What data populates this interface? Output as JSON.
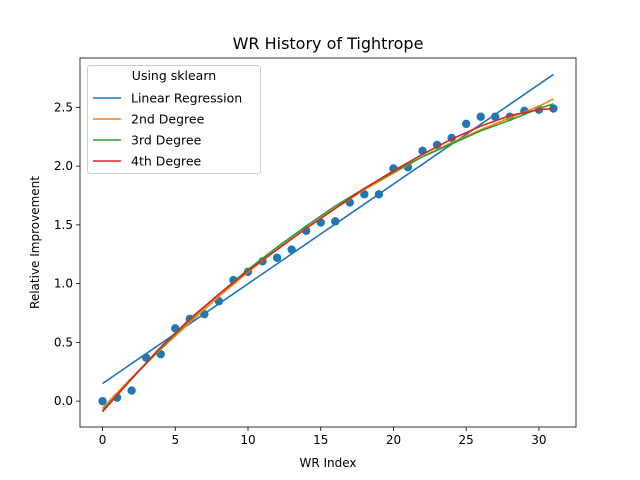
{
  "chart_data": {
    "type": "scatter",
    "title": "WR History of Tightrope",
    "xlabel": "WR Index",
    "ylabel": "Relative Improvement",
    "xlim": [
      -1.55,
      32.55
    ],
    "ylim": [
      -0.22,
      2.92
    ],
    "xticks": [
      0,
      5,
      10,
      15,
      20,
      25,
      30
    ],
    "yticks": [
      0.0,
      0.5,
      1.0,
      1.5,
      2.0,
      2.5
    ],
    "xtick_labels": [
      "0",
      "5",
      "10",
      "15",
      "20",
      "25",
      "30"
    ],
    "ytick_labels": [
      "0.0",
      "0.5",
      "1.0",
      "1.5",
      "2.0",
      "2.5"
    ],
    "grid": false,
    "legend": {
      "title": "Using sklearn",
      "position": "top-left"
    },
    "scatter": {
      "color": "#1f77b4",
      "x": [
        0,
        1,
        2,
        3,
        4,
        5,
        6,
        7,
        8,
        9,
        10,
        11,
        12,
        13,
        14,
        15,
        16,
        17,
        18,
        19,
        20,
        21,
        22,
        23,
        24,
        25,
        26,
        27,
        28,
        29,
        30,
        31
      ],
      "y": [
        0.0,
        0.03,
        0.09,
        0.37,
        0.4,
        0.62,
        0.7,
        0.74,
        0.85,
        1.03,
        1.1,
        1.19,
        1.22,
        1.29,
        1.45,
        1.52,
        1.53,
        1.69,
        1.76,
        1.76,
        1.98,
        1.99,
        2.13,
        2.18,
        2.24,
        2.36,
        2.42,
        2.42,
        2.42,
        2.47,
        2.48,
        2.49
      ]
    },
    "series": [
      {
        "name": "Linear Regression",
        "color": "#1f77b4",
        "x": [
          0,
          31
        ],
        "y": [
          0.15,
          2.78
        ]
      },
      {
        "name": "2nd Degree",
        "color": "#ff7f0e",
        "x": [
          0,
          2,
          4,
          6,
          8,
          10,
          12,
          14,
          16,
          18,
          20,
          22,
          24,
          26,
          28,
          30,
          31
        ],
        "y": [
          -0.06,
          0.2,
          0.44,
          0.67,
          0.89,
          1.1,
          1.29,
          1.47,
          1.64,
          1.8,
          1.94,
          2.08,
          2.2,
          2.31,
          2.41,
          2.51,
          2.57
        ]
      },
      {
        "name": "3rd Degree",
        "color": "#2ca02c",
        "x": [
          0,
          2,
          4,
          6,
          8,
          10,
          12,
          14,
          16,
          18,
          20,
          22,
          24,
          26,
          28,
          30,
          31
        ],
        "y": [
          -0.08,
          0.19,
          0.45,
          0.69,
          0.91,
          1.12,
          1.31,
          1.49,
          1.66,
          1.81,
          1.95,
          2.08,
          2.19,
          2.3,
          2.39,
          2.49,
          2.53
        ]
      },
      {
        "name": "4th Degree",
        "color": "#d62728",
        "x": [
          0,
          2,
          4,
          6,
          8,
          10,
          12,
          14,
          16,
          18,
          20,
          22,
          24,
          26,
          28,
          30,
          31
        ],
        "y": [
          -0.09,
          0.19,
          0.46,
          0.7,
          0.91,
          1.11,
          1.29,
          1.47,
          1.64,
          1.81,
          1.96,
          2.1,
          2.23,
          2.34,
          2.43,
          2.48,
          2.49
        ]
      }
    ]
  }
}
